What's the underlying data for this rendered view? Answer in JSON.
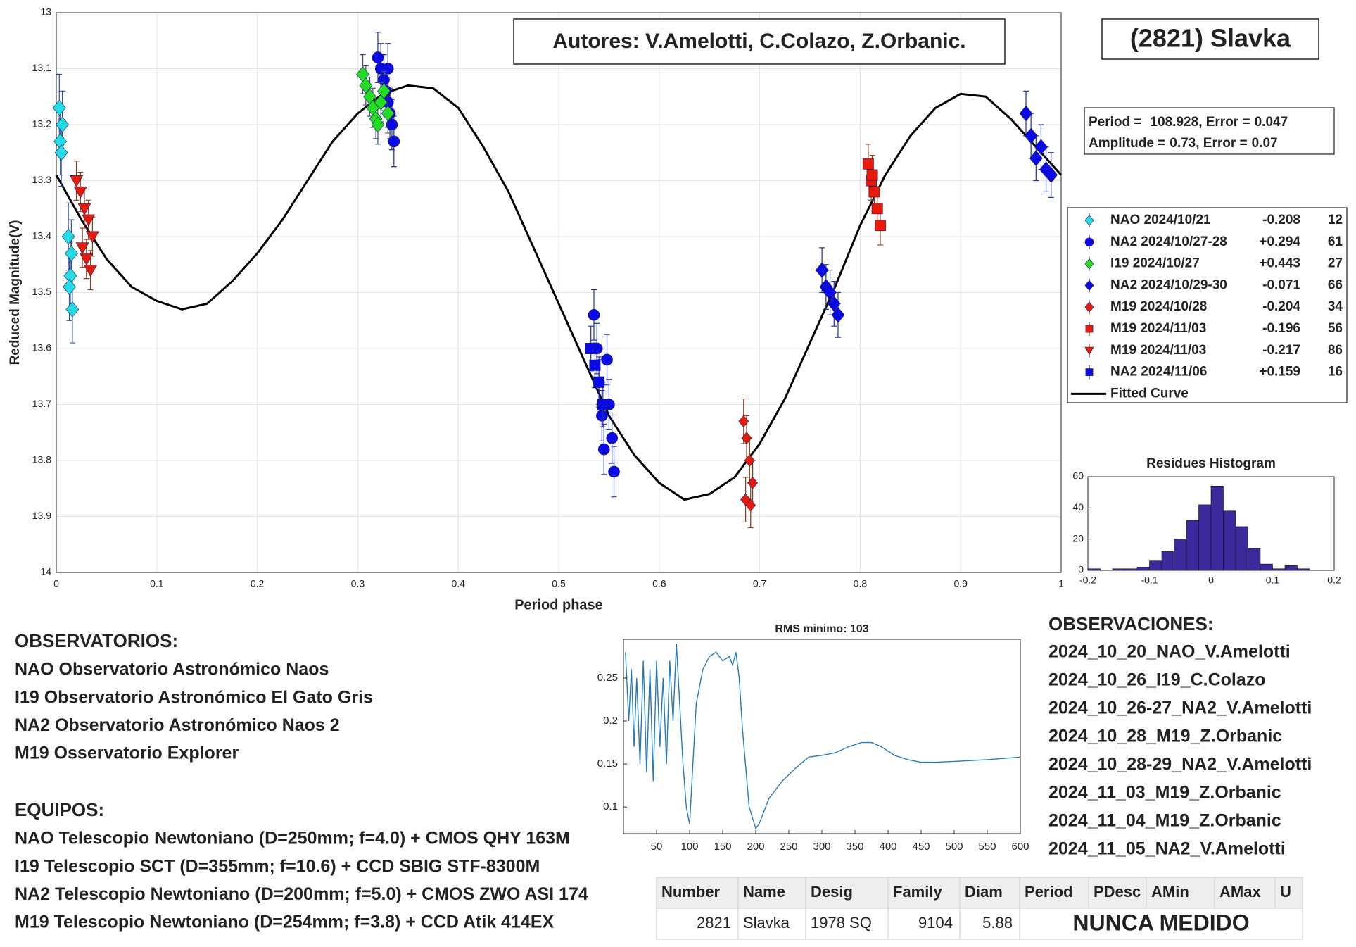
{
  "authors": "Autores: V.Amelotti, C.Colazo, Z.Orbanic.",
  "object_title": "(2821) Slavka",
  "observatories": {
    "title": "OBSERVATORIOS:",
    "items": [
      "NAO Observatorio Astronómico Naos",
      "I19 Observatorio Astronómico El Gato Gris",
      "NA2 Observatorio Astronómico Naos 2",
      "M19 Osservatorio Explorer"
    ]
  },
  "equipment": {
    "title": "EQUIPOS:",
    "items": [
      "NAO Telescopio Newtoniano (D=250mm; f=4.0) + CMOS QHY 163M",
      "I19 Telescopio SCT (D=355mm; f=10.6) + CCD SBIG STF-8300M",
      "NA2 Telescopio Newtoniano (D=200mm; f=5.0) + CMOS ZWO ASI 174",
      "M19 Telescopio Newtoniano (D=254mm; f=3.8) + CCD Atik 414EX"
    ]
  },
  "observations": {
    "title": "OBSERVACIONES:",
    "items": [
      "2024_10_20_NAO_V.Amelotti",
      "2024_10_26_I19_C.Colazo",
      "2024_10_26-27_NA2_V.Amelotti",
      "2024_10_28_M19_Z.Orbanic",
      "2024_10_28-29_NA2_V.Amelotti",
      "2024_11_03_M19_Z.Orbanic",
      "2024_11_04_M19_Z.Orbanic",
      "2024_11_05_NA2_V.Amelotti"
    ]
  },
  "table": {
    "headers": [
      "Number",
      "Name",
      "Desig",
      "Family",
      "Diam",
      "Period",
      "PDesc",
      "AMin",
      "AMax",
      "U"
    ],
    "rows": [
      [
        2821,
        "Slavka",
        "1978 SQ",
        9104,
        5.88,
        "NUNCA MEDIDO"
      ]
    ]
  },
  "chart_data": [
    {
      "type": "scatter",
      "x_label": "Period phase",
      "y_label": "Reduced Magnitude(V)",
      "xlim": [
        0,
        1
      ],
      "xticks": [
        0,
        0.1,
        0.2,
        0.3,
        0.4,
        0.5,
        0.6,
        0.7,
        0.8,
        0.9,
        1
      ],
      "ylim": [
        13,
        14
      ],
      "yticks": [
        13,
        13.1,
        13.2,
        13.3,
        13.4,
        13.5,
        13.6,
        13.7,
        13.8,
        13.9,
        14
      ],
      "y_inverted": true,
      "grid": true,
      "period_box": {
        "period_label": "Period =",
        "period": 108.928,
        "error_label": ", Error =",
        "period_error": 0.047,
        "amplitude_label": "Amplitude =",
        "amplitude": 0.73,
        "amplitude_error": 0.07
      },
      "series": [
        {
          "name": "NAO 2024/10/21",
          "offset": "-0.208",
          "count": 12,
          "color": "#22dde8",
          "marker": "diamond",
          "error_color": "#3050a0",
          "error": 0.06,
          "x": [
            0.003,
            0.006,
            0.004,
            0.005,
            0.012,
            0.015,
            0.014,
            0.013,
            0.016
          ],
          "values": [
            13.17,
            13.2,
            13.23,
            13.25,
            13.4,
            13.43,
            13.47,
            13.49,
            13.53
          ]
        },
        {
          "name": "NA2 2024/10/27-28",
          "offset": "+0.294",
          "count": 61,
          "color": "#0a0ae6",
          "marker": "circle",
          "error_color": "#2030a0",
          "error": 0.045,
          "x": [
            0.32,
            0.323,
            0.326,
            0.328,
            0.33,
            0.332,
            0.334,
            0.336,
            0.33,
            0.535,
            0.538,
            0.54,
            0.543,
            0.545,
            0.548,
            0.55,
            0.553,
            0.555
          ],
          "values": [
            13.08,
            13.1,
            13.12,
            13.14,
            13.16,
            13.18,
            13.2,
            13.23,
            13.1,
            13.54,
            13.6,
            13.66,
            13.72,
            13.78,
            13.62,
            13.7,
            13.76,
            13.82
          ]
        },
        {
          "name": "I19 2024/10/27",
          "offset": "+0.443",
          "count": 27,
          "color": "#22dd22",
          "marker": "diamond",
          "error_color": "#405080",
          "error": 0.035,
          "x": [
            0.305,
            0.308,
            0.312,
            0.315,
            0.318,
            0.32,
            0.323,
            0.326,
            0.33
          ],
          "values": [
            13.11,
            13.13,
            13.15,
            13.17,
            13.19,
            13.2,
            13.16,
            13.14,
            13.18
          ]
        },
        {
          "name": "NA2 2024/10/29-30",
          "offset": "-0.071",
          "count": 66,
          "color": "#0a0ae6",
          "marker": "diamond",
          "error_color": "#2030a0",
          "error": 0.04,
          "x": [
            0.762,
            0.766,
            0.77,
            0.774,
            0.778,
            0.965,
            0.97,
            0.975,
            0.98,
            0.985,
            0.99
          ],
          "values": [
            13.46,
            13.49,
            13.5,
            13.52,
            13.54,
            13.18,
            13.22,
            13.26,
            13.24,
            13.28,
            13.29
          ]
        },
        {
          "name": "M19 2024/10/28",
          "offset": "-0.204",
          "count": 34,
          "color": "#e81a0a",
          "marker": "diamond",
          "error_color": "#8b3a1a",
          "error": 0.04,
          "x": [
            0.684,
            0.687,
            0.69,
            0.693,
            0.686,
            0.691
          ],
          "values": [
            13.73,
            13.76,
            13.8,
            13.84,
            13.87,
            13.88
          ]
        },
        {
          "name": "M19 2024/11/03",
          "offset": "-0.196",
          "count": 56,
          "color": "#e81a0a",
          "marker": "square",
          "error_color": "#8b3a1a",
          "error": 0.035,
          "x": [
            0.808,
            0.811,
            0.814,
            0.817,
            0.82,
            0.812
          ],
          "values": [
            13.27,
            13.3,
            13.32,
            13.35,
            13.38,
            13.29
          ]
        },
        {
          "name": "M19 2024/11/03",
          "offset": "-0.217",
          "count": 86,
          "color": "#e81a0a",
          "marker": "triangle-down",
          "error_color": "#8b3a1a",
          "error": 0.035,
          "x": [
            0.02,
            0.024,
            0.028,
            0.032,
            0.036,
            0.026,
            0.03,
            0.034
          ],
          "values": [
            13.3,
            13.32,
            13.35,
            13.37,
            13.4,
            13.42,
            13.44,
            13.46
          ]
        },
        {
          "name": "NA2 2024/11/06",
          "offset": "+0.159",
          "count": 16,
          "color": "#0a0ae6",
          "marker": "square",
          "error_color": "#2030a0",
          "error": 0.04,
          "x": [
            0.532,
            0.536,
            0.54,
            0.544
          ],
          "values": [
            13.6,
            13.63,
            13.66,
            13.7
          ]
        }
      ],
      "fit": {
        "name": "Fitted Curve",
        "color": "#000000",
        "x": [
          0,
          0.025,
          0.05,
          0.075,
          0.1,
          0.125,
          0.15,
          0.175,
          0.2,
          0.225,
          0.25,
          0.275,
          0.3,
          0.325,
          0.35,
          0.375,
          0.4,
          0.425,
          0.45,
          0.475,
          0.5,
          0.525,
          0.55,
          0.575,
          0.6,
          0.625,
          0.65,
          0.675,
          0.7,
          0.725,
          0.75,
          0.775,
          0.8,
          0.825,
          0.85,
          0.875,
          0.9,
          0.925,
          0.95,
          0.975,
          1
        ],
        "values": [
          13.29,
          13.37,
          13.44,
          13.49,
          13.515,
          13.53,
          13.52,
          13.48,
          13.43,
          13.37,
          13.3,
          13.23,
          13.18,
          13.145,
          13.13,
          13.135,
          13.17,
          13.24,
          13.32,
          13.42,
          13.52,
          13.62,
          13.72,
          13.79,
          13.84,
          13.87,
          13.86,
          13.83,
          13.77,
          13.69,
          13.59,
          13.49,
          13.38,
          13.29,
          13.22,
          13.17,
          13.145,
          13.15,
          13.19,
          13.24,
          13.29
        ]
      }
    },
    {
      "type": "histogram",
      "title": "Residues Histogram",
      "color": "#3a2a9c",
      "bins": [
        -0.2,
        -0.18,
        -0.16,
        -0.14,
        -0.12,
        -0.1,
        -0.08,
        -0.06,
        -0.04,
        -0.02,
        0,
        0.02,
        0.04,
        0.06,
        0.08,
        0.1,
        0.12,
        0.14,
        0.16
      ],
      "counts": [
        1,
        0,
        1,
        1,
        2,
        6,
        12,
        20,
        32,
        42,
        54,
        38,
        28,
        14,
        4,
        1,
        3,
        1
      ],
      "xlim": [
        -0.2,
        0.2
      ],
      "xticks": [
        -0.2,
        -0.1,
        0,
        0.1,
        0.2
      ],
      "ylim": [
        0,
        60
      ],
      "yticks": [
        0,
        20,
        40,
        60
      ]
    },
    {
      "type": "line",
      "title": "RMS minimo: 103",
      "color": "#2a7ab8",
      "x": [
        3,
        8,
        12,
        16,
        20,
        25,
        30,
        35,
        40,
        45,
        50,
        55,
        60,
        65,
        70,
        75,
        80,
        85,
        90,
        95,
        100,
        105,
        110,
        120,
        130,
        140,
        150,
        160,
        165,
        170,
        175,
        180,
        190,
        200,
        205,
        210,
        220,
        240,
        260,
        280,
        300,
        320,
        340,
        360,
        375,
        390,
        410,
        430,
        450,
        470,
        500,
        550,
        600
      ],
      "values": [
        0.28,
        0.2,
        0.26,
        0.17,
        0.25,
        0.15,
        0.27,
        0.14,
        0.26,
        0.13,
        0.27,
        0.17,
        0.25,
        0.15,
        0.27,
        0.2,
        0.29,
        0.22,
        0.15,
        0.1,
        0.08,
        0.15,
        0.22,
        0.26,
        0.275,
        0.28,
        0.27,
        0.275,
        0.265,
        0.28,
        0.25,
        0.19,
        0.1,
        0.075,
        0.08,
        0.09,
        0.11,
        0.13,
        0.145,
        0.158,
        0.16,
        0.163,
        0.17,
        0.175,
        0.175,
        0.17,
        0.16,
        0.155,
        0.152,
        0.152,
        0.153,
        0.155,
        0.158
      ],
      "xlim": [
        0,
        600
      ],
      "xticks": [
        50,
        100,
        150,
        200,
        250,
        300,
        350,
        400,
        450,
        500,
        550,
        600
      ],
      "ylim": [
        0.069,
        0.295
      ],
      "yticks": [
        0.1,
        0.15,
        0.2,
        0.25
      ]
    }
  ]
}
